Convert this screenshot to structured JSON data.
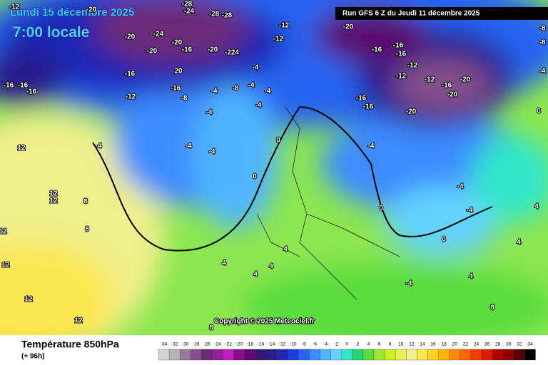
{
  "header": {
    "date": "Lundi 15 décembre 2025",
    "time": "7:00 locale",
    "run": "Run GFS 6 Z du Jeudi 11 décembre 2025"
  },
  "map": {
    "isotherm_labels": [
      -12,
      -20,
      -28,
      -24,
      -28,
      -28,
      -12,
      -20,
      -24,
      -20,
      -20,
      -16,
      -20,
      "-224",
      -12,
      -20,
      -16,
      -16,
      -16,
      -12,
      -12,
      -16,
      -20,
      -20,
      -20,
      -16,
      -16,
      -12,
      -8,
      -8,
      -4,
      0,
      20,
      -16,
      -16,
      -4,
      -8,
      -4,
      -4,
      -4,
      -4,
      -4,
      -8,
      -12,
      -16,
      -16,
      -16,
      -4,
      -4,
      -4,
      0,
      0,
      -4,
      12,
      12,
      12,
      8,
      12,
      8,
      0,
      -4,
      -4,
      0,
      4,
      4,
      4,
      4,
      4,
      4,
      -4,
      4,
      8,
      8,
      12,
      12,
      12
    ],
    "copyright": "Copyright © 2025 Meteociel.fr"
  },
  "footer": {
    "title": "Température 850hPa",
    "lead": "(+ 96h)"
  },
  "legend": {
    "values": [
      -34,
      -32,
      -30,
      -28,
      -26,
      -24,
      -22,
      -20,
      -18,
      -16,
      -14,
      -12,
      -10,
      -8,
      -6,
      -4,
      -2,
      0,
      2,
      4,
      6,
      8,
      10,
      12,
      14,
      16,
      18,
      20,
      22,
      24,
      26,
      28,
      30,
      32,
      34
    ],
    "colors": [
      "#d2d2d2",
      "#b4b4b4",
      "#9a7a9a",
      "#82508a",
      "#6a2a78",
      "#961e96",
      "#be1ebe",
      "#8c0a8c",
      "#5a0a6e",
      "#3c1478",
      "#281e8c",
      "#1e28b4",
      "#1e3cdc",
      "#2864f0",
      "#3c8cff",
      "#50b4ff",
      "#64d2ff",
      "#32e6c8",
      "#28d278",
      "#5adc3c",
      "#a0e632",
      "#c8f028",
      "#e6f050",
      "#f0f08c",
      "#fae650",
      "#ffd21e",
      "#ffb400",
      "#ff8c00",
      "#ff6400",
      "#f03c00",
      "#dc1e00",
      "#b40000",
      "#8c0000",
      "#5a0000",
      "#000000"
    ]
  }
}
